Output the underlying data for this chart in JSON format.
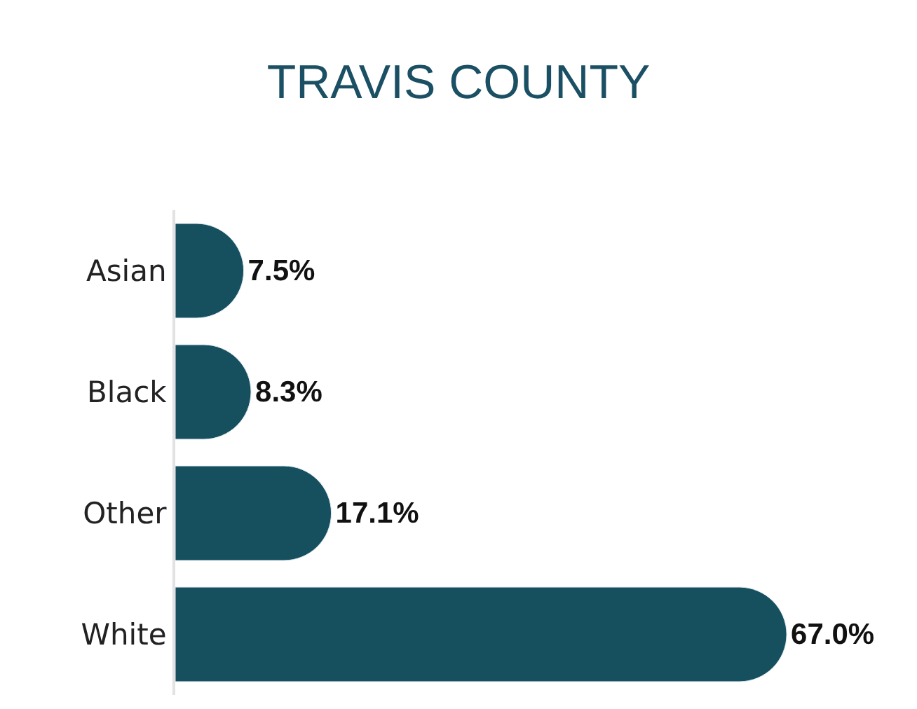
{
  "chart_data": {
    "type": "bar",
    "orientation": "horizontal",
    "title": "TRAVIS COUNTY",
    "categories": [
      "Asian",
      "Black",
      "Other",
      "White"
    ],
    "values": [
      7.5,
      8.3,
      17.1,
      67.0
    ],
    "value_labels": [
      "7.5%",
      "8.3%",
      "17.1%",
      "67.0%"
    ],
    "color": "#16505f",
    "tick_labels": "y"
  }
}
